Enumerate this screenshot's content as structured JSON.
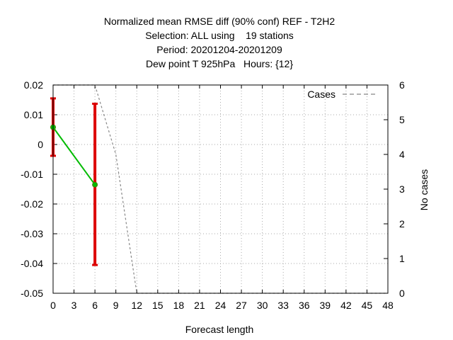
{
  "chart_data": {
    "type": "line",
    "title_lines": [
      "Normalized mean RMSE diff (90% conf) REF - T2H2",
      "Selection: ALL using    19 stations",
      "Period: 20201204-20201209",
      "Dew point T 925hPa   Hours: {12}"
    ],
    "xlabel": "Forecast length",
    "ylabel": "",
    "y2label": "No cases",
    "xlim": [
      0,
      48
    ],
    "ylim": [
      -0.05,
      0.02
    ],
    "y2lim": [
      0,
      6
    ],
    "xticks": [
      0,
      3,
      6,
      9,
      12,
      15,
      18,
      21,
      24,
      27,
      30,
      33,
      36,
      39,
      42,
      45,
      48
    ],
    "yticks": [
      0.02,
      0.01,
      0,
      -0.01,
      -0.02,
      -0.03,
      -0.04,
      -0.05
    ],
    "ytick_labels": [
      "0.02",
      "0.01",
      "0",
      "-0.01",
      "-0.02",
      "-0.03",
      "-0.04",
      "-0.05"
    ],
    "y2ticks": [
      0,
      1,
      2,
      3,
      4,
      5,
      6
    ],
    "grid": true,
    "legend_position": "top-right",
    "series": [
      {
        "kind": "diff",
        "axis": "y",
        "color": "#00bb00",
        "x": [
          0,
          6
        ],
        "y": [
          0.0058,
          -0.0135
        ],
        "ci_low": [
          -0.0038,
          -0.0405
        ],
        "ci_high": [
          0.0155,
          0.0137
        ],
        "errorbar_color": "#dd0000"
      },
      {
        "kind": "cases",
        "axis": "y2",
        "name": "Cases",
        "color": "#888888",
        "x": [
          0,
          3,
          6,
          9,
          12,
          15,
          18,
          21,
          24,
          27,
          30,
          33,
          36,
          39,
          42,
          45,
          48
        ],
        "y": [
          6,
          6,
          6,
          4,
          0,
          0,
          0,
          0,
          0,
          0,
          0,
          0,
          0,
          0,
          0,
          0,
          0
        ]
      }
    ]
  }
}
